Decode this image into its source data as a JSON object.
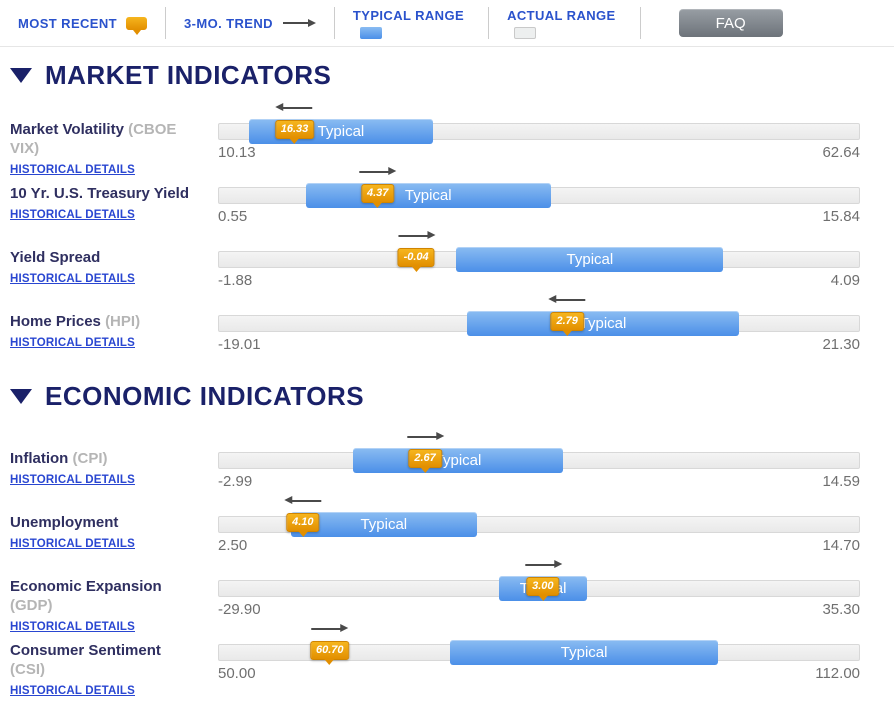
{
  "legend": {
    "most_recent_label": "MOST RECENT",
    "trend_label": "3-MO. TREND",
    "typical_range_label": "TYPICAL RANGE",
    "actual_range_label": "ACTUAL RANGE",
    "faq_label": "FAQ"
  },
  "labels": {
    "typical": "Typical",
    "historical_details": "HISTORICAL DETAILS"
  },
  "colors": {
    "accent_blue": "#2a52cc",
    "heading_navy": "#1a2169",
    "typical_bar_blue": "#5b9aec",
    "marker_orange": "#ec9c0c",
    "actual_track_gray": "#ededed",
    "faq_gray": "#757b81",
    "trend_arrow_gray": "#4a4a4a"
  },
  "sections": [
    {
      "title": "MARKET INDICATORS",
      "indicators": [
        {
          "name": "Market Volatility",
          "code": "(CBOE VIX)",
          "value": "16.33",
          "trend": "left",
          "min": "10.13",
          "max": "62.64",
          "typical_left_pct": 4.7,
          "typical_width_pct": 28.7,
          "marker_pct": 11.8
        },
        {
          "name": "10 Yr. U.S. Treasury Yield",
          "code": "",
          "value": "4.37",
          "trend": "right",
          "min": "0.55",
          "max": "15.84",
          "typical_left_pct": 13.6,
          "typical_width_pct": 38.2,
          "marker_pct": 24.8
        },
        {
          "name": "Yield Spread",
          "code": "",
          "value": "-0.04",
          "trend": "right",
          "min": "-1.88",
          "max": "4.09",
          "typical_left_pct": 37.1,
          "typical_width_pct": 41.7,
          "marker_pct": 30.8
        },
        {
          "name": "Home Prices",
          "code": "(HPI)",
          "value": "2.79",
          "trend": "left",
          "min": "-19.01",
          "max": "21.30",
          "typical_left_pct": 38.8,
          "typical_width_pct": 42.4,
          "marker_pct": 54.4
        }
      ]
    },
    {
      "title": "ECONOMIC INDICATORS",
      "indicators": [
        {
          "name": "Inflation",
          "code": "(CPI)",
          "value": "2.67",
          "trend": "right",
          "min": "-2.99",
          "max": "14.59",
          "typical_left_pct": 20.9,
          "typical_width_pct": 32.9,
          "marker_pct": 32.2
        },
        {
          "name": "Unemployment",
          "code": "",
          "value": "4.10",
          "trend": "left",
          "min": "2.50",
          "max": "14.70",
          "typical_left_pct": 11.2,
          "typical_width_pct": 29.1,
          "marker_pct": 13.1
        },
        {
          "name": "Economic Expansion",
          "code": "(GDP)",
          "code_on_new_line": true,
          "value": "3.00",
          "trend": "right",
          "min": "-29.90",
          "max": "35.30",
          "typical_left_pct": 43.8,
          "typical_width_pct": 13.7,
          "marker_pct": 50.6
        },
        {
          "name": "Consumer Sentiment",
          "code": "(CSI)",
          "code_on_new_line": true,
          "value": "60.70",
          "trend": "right",
          "min": "50.00",
          "max": "112.00",
          "typical_left_pct": 36.1,
          "typical_width_pct": 41.9,
          "marker_pct": 17.3
        }
      ]
    }
  ]
}
